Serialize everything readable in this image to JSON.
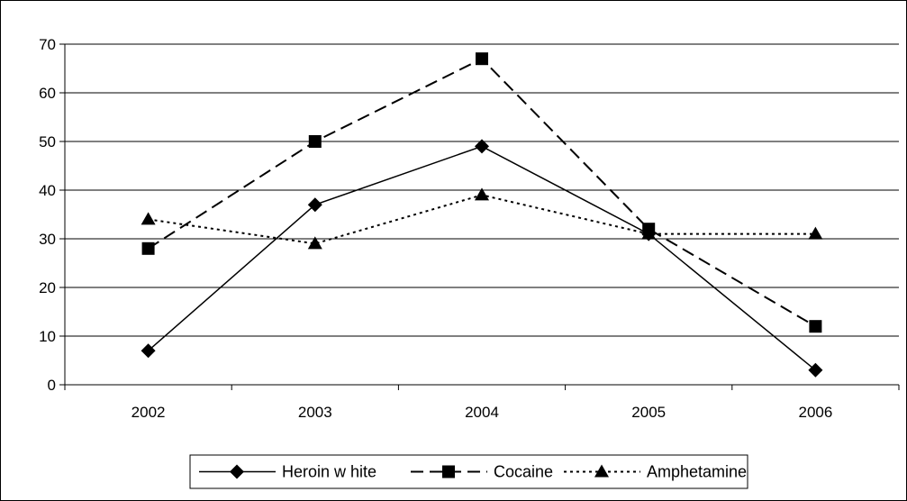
{
  "chart_data": {
    "type": "line",
    "title": "",
    "xlabel": "",
    "ylabel": "",
    "categories": [
      "2002",
      "2003",
      "2004",
      "2005",
      "2006"
    ],
    "ylim": [
      0,
      70
    ],
    "yticks": [
      0,
      10,
      20,
      30,
      40,
      50,
      60,
      70
    ],
    "grid": true,
    "legend_position": "bottom",
    "series": [
      {
        "name": "Heroin w hite",
        "values": [
          7,
          37,
          49,
          31,
          3
        ],
        "marker": "diamond",
        "line_style": "solid",
        "color": "#000000"
      },
      {
        "name": "Cocaine",
        "values": [
          28,
          50,
          67,
          32,
          12
        ],
        "marker": "square",
        "line_style": "dashed",
        "color": "#000000"
      },
      {
        "name": "Amphetamine",
        "values": [
          34,
          29,
          39,
          31,
          31
        ],
        "marker": "triangle",
        "line_style": "dotted",
        "color": "#000000"
      }
    ]
  }
}
